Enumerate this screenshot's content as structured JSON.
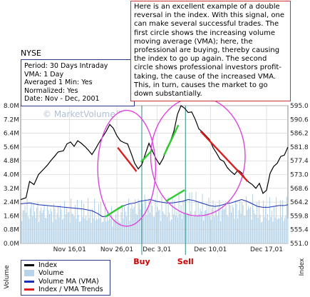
{
  "exchange": "NYSE",
  "info_lines": [
    "Period: 30 Days Intraday",
    "VMA: 1 Day",
    "Averaged 1 Min: Yes",
    "Normalized: Yes",
    "Date: Nov - Dec, 2001"
  ],
  "note": "Here is an excellent example of a double reversal in the index. With this signal, one can make several successful trades. The first circle shows the increasing volume moving average (VMA); here, the professional are buying, thereby causing the index to go up again. The second circle shows professional investors profit-taking, the cause of the increased VMA. This, in turn, causes the market to go down substantially.",
  "watermark": "© MarketVolume™",
  "legend": [
    {
      "label": "Index",
      "color": "#000000"
    },
    {
      "label": "Volume",
      "color": "#b8d4ea"
    },
    {
      "label": "Volume MA (VMA)",
      "color": "#1a2fb4"
    },
    {
      "label": "Index / VMA Trends",
      "color": "#d92020"
    }
  ],
  "markers": {
    "buy": "Buy",
    "sell": "Sell"
  },
  "colors": {
    "index": "#000000",
    "volume": "#b8d4ea",
    "vma": "#1a2fb4",
    "down_trend": "#d92020",
    "up_trend": "#2ecc2e",
    "circle": "#dd44dd",
    "signal_line": "#2a8a8a",
    "marker_text": "#cc0000"
  },
  "chart_data": {
    "type": "line",
    "x_ticks": [
      "Nov 16,01",
      "Nov 26,01",
      "Dec 3,01",
      "Dec 10,01",
      "Dec 17,01"
    ],
    "xlim": [
      0,
      30
    ],
    "x_tick_positions": [
      5.5,
      10.8,
      15.3,
      21.3,
      27.6
    ],
    "left_axis": {
      "label": "Volume",
      "ticks": [
        "0.0M",
        "0.8M",
        "1.6M",
        "2.4M",
        "3.2M",
        "4.0M",
        "4.8M",
        "5.6M",
        "6.4M",
        "7.2M",
        "8.0M"
      ],
      "ylim": [
        0,
        8.0
      ]
    },
    "right_axis": {
      "label": "Index",
      "ticks": [
        "551.0",
        "555.4",
        "559.8",
        "564.2",
        "568.6",
        "573.0",
        "577.4",
        "581.8",
        "586.2",
        "590.6",
        "595.0"
      ],
      "ylim": [
        551.0,
        595.0
      ]
    },
    "grid": true,
    "series": [
      {
        "name": "Index",
        "axis": "right",
        "x": [
          0,
          0.6,
          1.0,
          1.5,
          2.0,
          2.6,
          3.0,
          3.4,
          3.8,
          4.2,
          4.8,
          5.2,
          5.6,
          6.0,
          6.4,
          6.8,
          7.2,
          7.6,
          8.0,
          8.4,
          8.8,
          9.2,
          9.6,
          10.0,
          10.4,
          10.8,
          11.2,
          11.6,
          12.0,
          12.4,
          12.8,
          13.2,
          13.6,
          14.0,
          14.4,
          14.8,
          15.2,
          15.6,
          16.0,
          16.4,
          16.8,
          17.2,
          17.6,
          18.0,
          18.4,
          18.8,
          19.2,
          19.6,
          20.0,
          20.4,
          20.8,
          21.2,
          21.6,
          22.0,
          22.4,
          22.8,
          23.2,
          23.6,
          24.0,
          24.4,
          24.8,
          25.2,
          25.6,
          26.0,
          26.4,
          26.8,
          27.2,
          27.6,
          28.0,
          28.4,
          28.8,
          29.2,
          29.6,
          30.0
        ],
        "values": [
          565.0,
          565.6,
          570.8,
          569.8,
          573.0,
          574.8,
          576.0,
          577.5,
          578.8,
          580.2,
          580.6,
          582.8,
          583.4,
          582.0,
          583.8,
          583.0,
          582.0,
          580.8,
          579.4,
          581.2,
          583.2,
          585.0,
          586.8,
          589.0,
          587.8,
          585.4,
          583.8,
          583.2,
          582.8,
          579.8,
          576.6,
          574.8,
          576.2,
          579.6,
          583.0,
          580.5,
          578.0,
          576.2,
          578.2,
          581.4,
          583.6,
          586.8,
          592.2,
          595.0,
          594.2,
          592.8,
          593.0,
          590.6,
          587.6,
          586.6,
          585.4,
          584.2,
          581.6,
          579.8,
          577.8,
          577.2,
          575.2,
          574.0,
          573.0,
          574.4,
          573.6,
          571.8,
          570.6,
          569.8,
          568.6,
          570.2,
          567.0,
          568.0,
          573.4,
          575.6,
          576.6,
          578.8,
          579.2,
          581.8
        ]
      },
      {
        "name": "Volume MA (VMA)",
        "axis": "left",
        "x": [
          0,
          1.0,
          2.0,
          3.0,
          4.0,
          5.0,
          6.0,
          7.0,
          8.0,
          8.6,
          9.2,
          9.8,
          10.4,
          11.0,
          11.6,
          12.2,
          12.8,
          13.4,
          14.0,
          14.6,
          15.2,
          15.8,
          16.4,
          17.0,
          17.6,
          18.2,
          18.8,
          19.4,
          20.0,
          20.6,
          21.2,
          21.8,
          22.4,
          23.0,
          23.6,
          24.2,
          24.8,
          25.4,
          26.0,
          26.6,
          27.2,
          27.8,
          28.4,
          29.0,
          29.6,
          30.0
        ],
        "values": [
          2.3,
          2.35,
          2.25,
          2.2,
          2.15,
          2.1,
          2.05,
          2.0,
          1.9,
          1.75,
          1.55,
          1.6,
          1.85,
          2.0,
          2.2,
          2.3,
          2.35,
          2.45,
          2.5,
          2.55,
          2.45,
          2.4,
          2.35,
          2.35,
          2.4,
          2.45,
          2.55,
          2.5,
          2.4,
          2.3,
          2.2,
          2.15,
          2.2,
          2.3,
          2.35,
          2.45,
          2.55,
          2.45,
          2.3,
          2.15,
          2.1,
          2.1,
          2.15,
          2.2,
          2.2,
          2.25
        ]
      },
      {
        "name": "Volume",
        "axis": "left",
        "style": "bars",
        "envelope_x": [
          0,
          3,
          6,
          9,
          10.5,
          12,
          13,
          14,
          15,
          17,
          18,
          19,
          20,
          22,
          24,
          26,
          27,
          28,
          30
        ],
        "envelope_values": [
          2.9,
          2.6,
          2.7,
          2.6,
          2.1,
          2.9,
          3.0,
          3.3,
          2.8,
          2.9,
          3.1,
          3.3,
          3.0,
          2.8,
          2.9,
          3.0,
          2.6,
          2.7,
          2.8
        ]
      }
    ],
    "trends": [
      {
        "type": "down",
        "axis": "right",
        "from": [
          10.9,
          581.6
        ],
        "to": [
          13.0,
          574.0
        ]
      },
      {
        "type": "up",
        "axis": "right",
        "from": [
          13.5,
          577.0
        ],
        "to": [
          14.7,
          580.6
        ]
      },
      {
        "type": "up",
        "axis": "right",
        "from": [
          16.1,
          579.2
        ],
        "to": [
          17.7,
          588.8
        ]
      },
      {
        "type": "down",
        "axis": "right",
        "from": [
          20.2,
          586.8
        ],
        "to": [
          25.5,
          570.8
        ]
      },
      {
        "type": "up",
        "axis": "left",
        "from": [
          9.5,
          1.55
        ],
        "to": [
          11.5,
          2.2
        ]
      },
      {
        "type": "up",
        "axis": "left",
        "from": [
          16.3,
          2.45
        ],
        "to": [
          18.4,
          3.1
        ]
      }
    ],
    "circles": [
      {
        "cx": 11.9,
        "cy_index": 575.0,
        "rx_days": 3.25,
        "ry_index": 18.5
      },
      {
        "cx": 19.9,
        "cy_index": 578.8,
        "rx_days": 5.3,
        "ry_index": 19.0
      }
    ],
    "signals": [
      {
        "name": "Buy",
        "x": 13.6
      },
      {
        "name": "Sell",
        "x": 18.5
      }
    ]
  }
}
